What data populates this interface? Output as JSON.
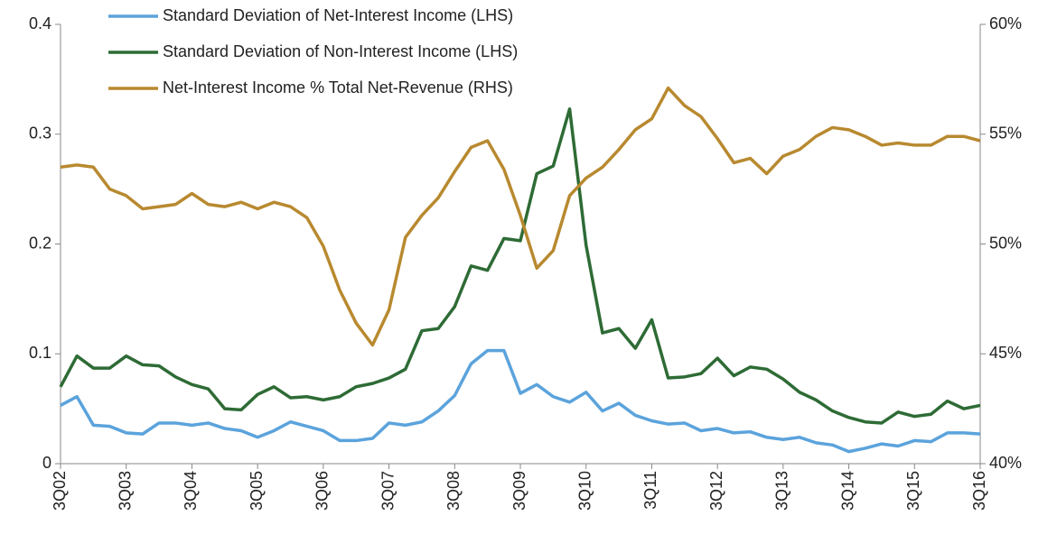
{
  "chart_data": {
    "type": "line",
    "categories": [
      "3Q02",
      null,
      null,
      null,
      "3Q03",
      null,
      null,
      null,
      "3Q04",
      null,
      null,
      null,
      "3Q05",
      null,
      null,
      null,
      "3Q06",
      null,
      null,
      null,
      "3Q07",
      null,
      null,
      null,
      "3Q08",
      null,
      null,
      null,
      "3Q09",
      null,
      null,
      null,
      "3Q10",
      null,
      null,
      null,
      "3Q11",
      null,
      null,
      null,
      "3Q12",
      null,
      null,
      null,
      "3Q13",
      null,
      null,
      null,
      "3Q14",
      null,
      null,
      null,
      "3Q15",
      null,
      null,
      null,
      "3Q16"
    ],
    "series": [
      {
        "name": "Standard Deviation of Net-Interest Income (LHS)",
        "color": "#5ba3dc",
        "values": [
          0.053,
          0.061,
          0.035,
          0.034,
          0.028,
          0.027,
          0.037,
          0.037,
          0.035,
          0.037,
          0.032,
          0.03,
          0.024,
          0.03,
          0.038,
          0.034,
          0.03,
          0.021,
          0.021,
          0.023,
          0.037,
          0.035,
          0.038,
          0.048,
          0.062,
          0.091,
          0.103,
          0.103,
          0.064,
          0.072,
          0.061,
          0.056,
          0.065,
          0.048,
          0.055,
          0.044,
          0.039,
          0.036,
          0.037,
          0.03,
          0.032,
          0.028,
          0.029,
          0.024,
          0.022,
          0.024,
          0.019,
          0.017,
          0.011,
          0.014,
          0.018,
          0.016,
          0.021,
          0.02,
          0.028,
          0.028,
          0.027
        ]
      },
      {
        "name": "Standard Deviation of Non-Interest Income (LHS)",
        "color": "#2e6b35",
        "values": [
          0.07,
          0.098,
          0.087,
          0.087,
          0.098,
          0.09,
          0.089,
          0.079,
          0.072,
          0.068,
          0.05,
          0.049,
          0.063,
          0.07,
          0.06,
          0.061,
          0.058,
          0.061,
          0.07,
          0.073,
          0.078,
          0.086,
          0.121,
          0.123,
          0.143,
          0.18,
          0.176,
          0.205,
          0.203,
          0.264,
          0.271,
          0.323,
          0.199,
          0.119,
          0.123,
          0.105,
          0.131,
          0.078,
          0.079,
          0.082,
          0.096,
          0.08,
          0.088,
          0.086,
          0.077,
          0.065,
          0.058,
          0.048,
          0.042,
          0.038,
          0.037,
          0.047,
          0.043,
          0.045,
          0.057,
          0.05,
          0.053
        ]
      },
      {
        "name": "Net-Interest Income % Total Net-Revenue (RHS)",
        "color": "#b8892f",
        "axis": "y2",
        "values": [
          53.5,
          53.6,
          53.5,
          52.5,
          52.2,
          51.6,
          51.7,
          51.8,
          52.3,
          51.8,
          51.7,
          51.9,
          51.6,
          51.9,
          51.7,
          51.2,
          49.9,
          47.9,
          46.4,
          45.4,
          47.0,
          50.3,
          51.3,
          52.1,
          53.3,
          54.4,
          54.7,
          53.4,
          51.3,
          48.9,
          49.7,
          52.2,
          53.0,
          53.5,
          54.3,
          55.2,
          55.7,
          57.1,
          56.3,
          55.8,
          54.8,
          53.7,
          53.9,
          53.2,
          54.0,
          54.3,
          54.9,
          55.3,
          55.2,
          54.9,
          54.5,
          54.6,
          54.5,
          54.5,
          54.9,
          54.9,
          54.7
        ]
      }
    ],
    "ylim": [
      0,
      0.4
    ],
    "yticks": [
      0,
      0.1,
      0.2,
      0.3,
      0.4
    ],
    "y2lim": [
      40,
      60
    ],
    "y2ticks": [
      {
        "value": 40,
        "label": "40%"
      },
      {
        "value": 45,
        "label": "45%"
      },
      {
        "value": 50,
        "label": "50%"
      },
      {
        "value": 55,
        "label": "55%"
      },
      {
        "value": 60,
        "label": "60%"
      }
    ],
    "grid": false,
    "legend": "top-left"
  }
}
